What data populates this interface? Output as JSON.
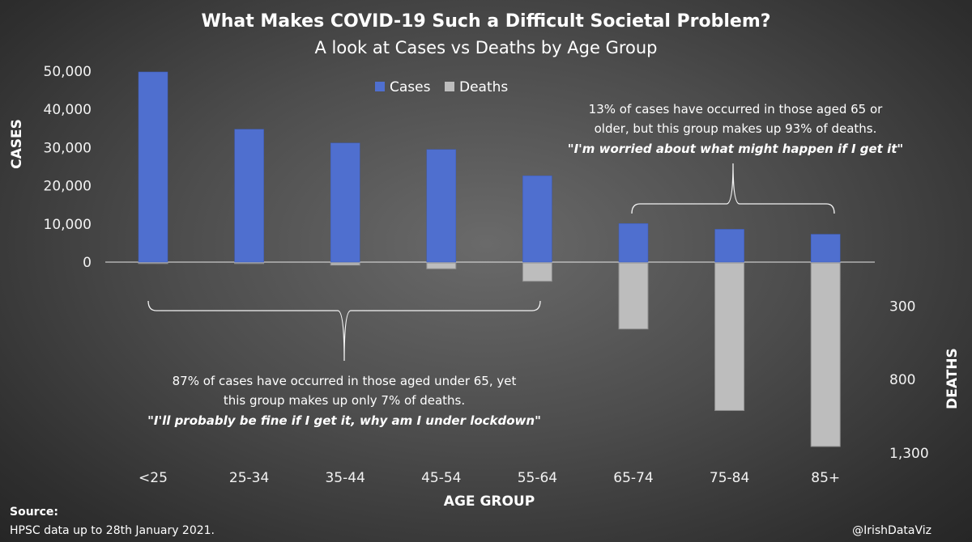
{
  "title": "What Makes COVID-19 Such a Difficult Societal Problem?",
  "subtitle": "A look at Cases vs Deaths by Age Group",
  "chart_data": {
    "type": "bar",
    "categories": [
      "<25",
      "25-34",
      "35-44",
      "45-54",
      "55-64",
      "65-74",
      "75-84",
      "85+"
    ],
    "series": [
      {
        "name": "Cases",
        "axis": "left",
        "direction": "up",
        "color": "#4f6fcf",
        "values": [
          49800,
          34800,
          31200,
          29500,
          22600,
          10100,
          8600,
          7300
        ]
      },
      {
        "name": "Deaths",
        "axis": "right",
        "direction": "down",
        "color": "#bdbdbd",
        "values": [
          2,
          4,
          15,
          40,
          125,
          450,
          1005,
          1250
        ]
      }
    ],
    "xlabel": "AGE GROUP",
    "ylabel_left": "CASES",
    "ylabel_right": "DEATHS",
    "left_ticks": [
      "50,000",
      "40,000",
      "30,000",
      "20,000",
      "10,000",
      "0"
    ],
    "right_ticks": [
      "300",
      "800",
      "1,300"
    ],
    "ylim_cases": [
      0,
      50000
    ],
    "ylim_deaths": [
      0,
      1300
    ],
    "legend": [
      "Cases",
      "Deaths"
    ],
    "legend_position": "top-center",
    "grid": false,
    "annotations": {
      "young": {
        "line1": "87% of cases have occurred in those aged under 65, yet",
        "line2": "this group makes up only 7% of deaths.",
        "quote": "\"I'll probably be fine if I get it, why am I under lockdown\""
      },
      "old": {
        "line1": "13% of cases have occurred in those aged 65 or",
        "line2": "older, but this group makes up  93% of deaths.",
        "quote": "\"I'm worried about what might happen if I get it\""
      }
    }
  },
  "source": {
    "label": "Source:",
    "text": "HPSC data up to 28th January 2021."
  },
  "credit": "@IrishDataViz"
}
